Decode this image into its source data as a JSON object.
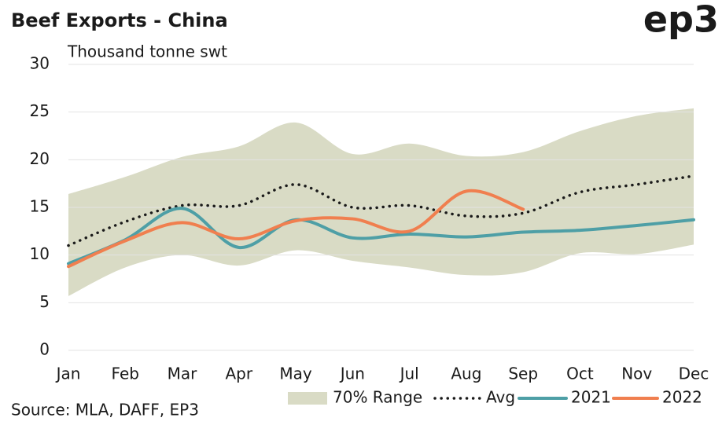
{
  "chart_data": {
    "type": "line",
    "title": "Beef Exports - China",
    "logo": "ep3",
    "subtitle": "Thousand tonne swt",
    "source": "Source: MLA, DAFF, EP3",
    "categories": [
      "Jan",
      "Feb",
      "Mar",
      "Apr",
      "May",
      "Jun",
      "Jul",
      "Aug",
      "Sep",
      "Oct",
      "Nov",
      "Dec"
    ],
    "range": {
      "name": "70% Range",
      "color": "#d9dbc5",
      "upper": [
        16.4,
        18.2,
        20.3,
        21.4,
        23.9,
        20.6,
        21.7,
        20.4,
        20.8,
        23.0,
        24.6,
        25.4
      ],
      "lower": [
        5.7,
        8.7,
        10.0,
        8.9,
        10.5,
        9.4,
        8.7,
        7.9,
        8.2,
        10.2,
        10.1,
        11.1
      ]
    },
    "series": [
      {
        "name": "Avg",
        "color": "#1a1a1a",
        "dashed": true,
        "values": [
          11.0,
          13.5,
          15.2,
          15.2,
          17.4,
          15.0,
          15.2,
          14.1,
          14.4,
          16.6,
          17.4,
          18.3
        ]
      },
      {
        "name": "2021",
        "color": "#4e9fa6",
        "values": [
          9.1,
          11.6,
          14.9,
          10.8,
          13.7,
          11.8,
          12.2,
          11.9,
          12.4,
          12.6,
          13.1,
          13.7
        ]
      },
      {
        "name": "2022",
        "color": "#f07f4f",
        "values": [
          8.8,
          11.5,
          13.4,
          11.7,
          13.6,
          13.8,
          12.5,
          16.7,
          14.8,
          null,
          null,
          null
        ]
      }
    ],
    "ylim": [
      0,
      30
    ],
    "yticks": [
      0,
      5,
      10,
      15,
      20,
      25,
      30
    ],
    "grid": true,
    "legend": "bottom"
  }
}
